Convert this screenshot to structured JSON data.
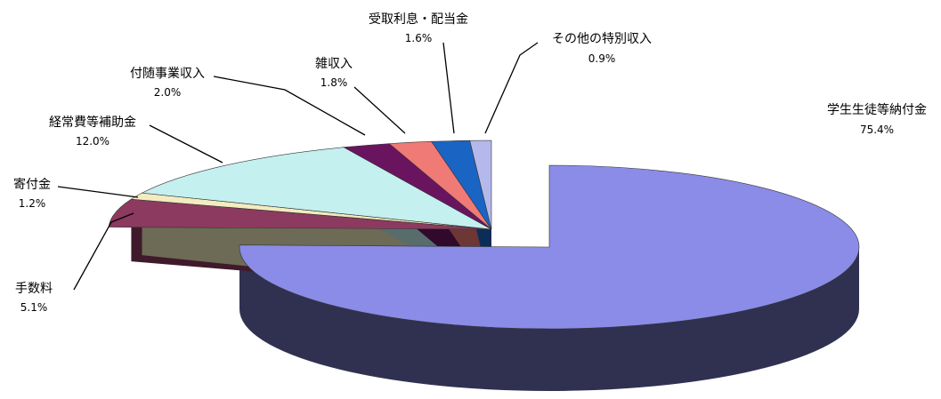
{
  "chart_data": {
    "type": "pie",
    "title": "",
    "slices": [
      {
        "label": "学生生徒等納付金",
        "value": 75.4,
        "value_label": "75.4%",
        "color": "#8a8ce8"
      },
      {
        "label": "手数料",
        "value": 5.1,
        "value_label": "5.1%",
        "color": "#8c3a5f"
      },
      {
        "label": "寄付金",
        "value": 1.2,
        "value_label": "1.2%",
        "color": "#f2ecc0"
      },
      {
        "label": "経常費等補助金",
        "value": 12.0,
        "value_label": "12.0%",
        "color": "#c4f0ef"
      },
      {
        "label": "付随事業収入",
        "value": 2.0,
        "value_label": "2.0%",
        "color": "#6a1460"
      },
      {
        "label": "雑収入",
        "value": 1.8,
        "value_label": "1.8%",
        "color": "#f07a76"
      },
      {
        "label": "受取利息・配当金",
        "value": 1.6,
        "value_label": "1.6%",
        "color": "#1a64c4"
      },
      {
        "label": "その他の特別収入",
        "value": 0.9,
        "value_label": "0.9%",
        "color": "#b4b8ea"
      }
    ]
  }
}
